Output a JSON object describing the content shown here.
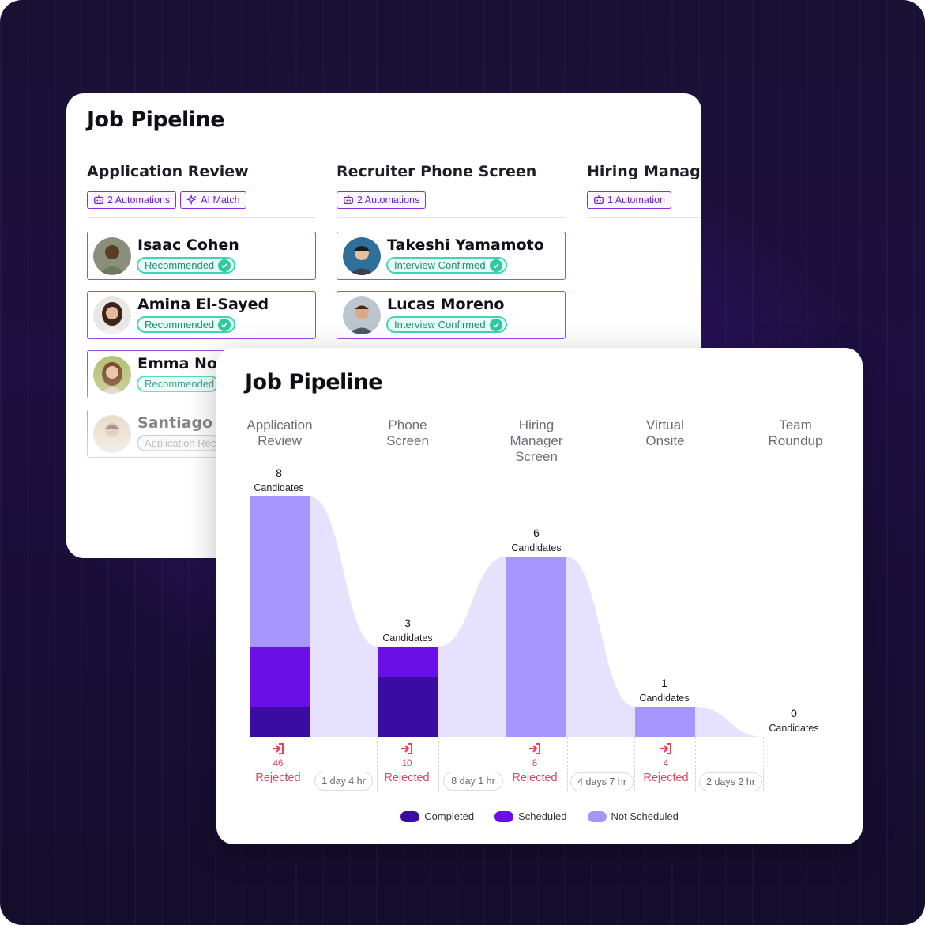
{
  "colors": {
    "completed": "#3b0ca3",
    "scheduled": "#6a10e6",
    "not_scheduled": "#a695fb",
    "flow": "#e6e1fc",
    "accent": "#8a2be2",
    "rejected": "#e0435b"
  },
  "back_panel": {
    "title": "Job Pipeline",
    "columns": [
      {
        "title": "Application Review",
        "chips": [
          {
            "icon": "robot-icon",
            "label": "2 Automations"
          },
          {
            "icon": "sparkle-icon",
            "label": "AI Match"
          }
        ],
        "candidates": [
          {
            "name": "Isaac Cohen",
            "status": "Recommended",
            "status_type": "green"
          },
          {
            "name": "Amina El-Sayed",
            "status": "Recommended",
            "status_type": "green"
          },
          {
            "name": "Emma Nov",
            "status": "Recommended",
            "status_type": "green"
          },
          {
            "name": "Santiago R",
            "status": "Application Rec",
            "status_type": "gray"
          }
        ]
      },
      {
        "title": "Recruiter Phone Screen",
        "chips": [
          {
            "icon": "robot-icon",
            "label": "2 Automations"
          }
        ],
        "candidates": [
          {
            "name": "Takeshi Yamamoto",
            "status": "Interview Confirmed",
            "status_type": "green"
          },
          {
            "name": "Lucas Moreno",
            "status": "Interview Confirmed",
            "status_type": "green"
          }
        ]
      },
      {
        "title": "Hiring Manager",
        "chips": [
          {
            "icon": "robot-icon",
            "label": "1 Automation"
          }
        ],
        "candidates": []
      }
    ]
  },
  "front_panel": {
    "title": "Job Pipeline",
    "stages": [
      {
        "label": "Application\nReview",
        "count": "8",
        "count_label": "Candidates",
        "rejected": "46",
        "rejected_label": "Rejected"
      },
      {
        "label": "Phone\nScreen",
        "count": "3",
        "count_label": "Candidates",
        "rejected": "10",
        "rejected_label": "Rejected"
      },
      {
        "label": "Hiring\nManager\nScreen",
        "count": "6",
        "count_label": "Candidates",
        "rejected": "8",
        "rejected_label": "Rejected"
      },
      {
        "label": "Virtual\nOnsite",
        "count": "1",
        "count_label": "Candidates",
        "rejected": "4",
        "rejected_label": "Rejected"
      },
      {
        "label": "Team\nRoundup",
        "count": "0",
        "count_label": "Candidates"
      }
    ],
    "durations": [
      "1 day 4 hr",
      "8 day 1 hr",
      "4 days 7 hr",
      "2 days 2 hr"
    ],
    "legend": [
      {
        "label": "Completed",
        "color_key": "completed"
      },
      {
        "label": "Scheduled",
        "color_key": "scheduled"
      },
      {
        "label": "Not Scheduled",
        "color_key": "not_scheduled"
      }
    ]
  },
  "chart_data": {
    "type": "bar",
    "categories": [
      "Application Review",
      "Phone Screen",
      "Hiring Manager Screen",
      "Virtual Onsite",
      "Team Roundup"
    ],
    "series": [
      {
        "name": "Completed",
        "values": [
          1,
          2,
          0,
          0,
          0
        ]
      },
      {
        "name": "Scheduled",
        "values": [
          2,
          1,
          0,
          0,
          0
        ]
      },
      {
        "name": "Not Scheduled",
        "values": [
          5,
          0,
          6,
          1,
          0
        ]
      }
    ],
    "totals": [
      8,
      3,
      6,
      1,
      0
    ],
    "rejected": [
      46,
      10,
      8,
      4
    ],
    "stacked": true,
    "ylim": [
      0,
      8
    ],
    "legend_position": "bottom"
  }
}
